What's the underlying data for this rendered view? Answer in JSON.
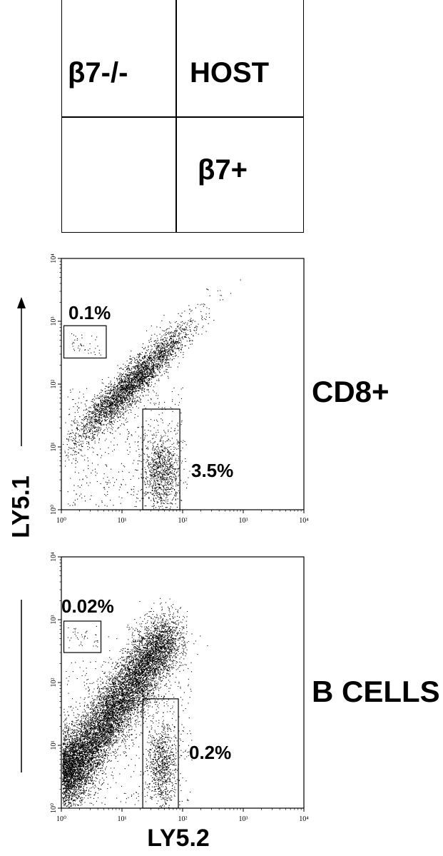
{
  "legend": {
    "top_left": "β7-/-",
    "top_right": "HOST",
    "bottom_left": "",
    "bottom_right": "β7+"
  },
  "axis_titles": {
    "y": "LY5.1",
    "x": "LY5.2"
  },
  "chart_data": [
    {
      "type": "scatter",
      "name": "CD8+",
      "row_label": "CD8+",
      "xlabel": "LY5.2",
      "ylabel": "LY5.1",
      "x_scale": "log",
      "y_scale": "log",
      "xlim": [
        1,
        10000
      ],
      "ylim": [
        1,
        10000
      ],
      "x_ticks": [
        "10⁰",
        "10¹",
        "10²",
        "10³",
        "10⁴"
      ],
      "y_ticks": [
        "10⁰",
        "10¹",
        "10²",
        "10³",
        "10⁴"
      ],
      "gates": [
        {
          "label": "0.1%",
          "x_range": [
            1.1,
            5.5
          ],
          "y_range": [
            260,
            850
          ]
        },
        {
          "label": "3.5%",
          "x_range": [
            22,
            90
          ],
          "y_range": [
            1,
            40
          ]
        }
      ]
    },
    {
      "type": "scatter",
      "name": "B CELLS",
      "row_label": "B CELLS",
      "xlabel": "LY5.2",
      "ylabel": "LY5.1",
      "x_scale": "log",
      "y_scale": "log",
      "xlim": [
        1,
        10000
      ],
      "ylim": [
        1,
        10000
      ],
      "x_ticks": [
        "10⁰",
        "10¹",
        "10²",
        "10³",
        "10⁴"
      ],
      "y_ticks": [
        "10⁰",
        "10¹",
        "10²",
        "10³",
        "10⁴"
      ],
      "gates": [
        {
          "label": "0.02%",
          "x_range": [
            1.1,
            4.5
          ],
          "y_range": [
            300,
            950
          ]
        },
        {
          "label": "0.2%",
          "x_range": [
            22,
            85
          ],
          "y_range": [
            1,
            55
          ]
        }
      ]
    }
  ]
}
